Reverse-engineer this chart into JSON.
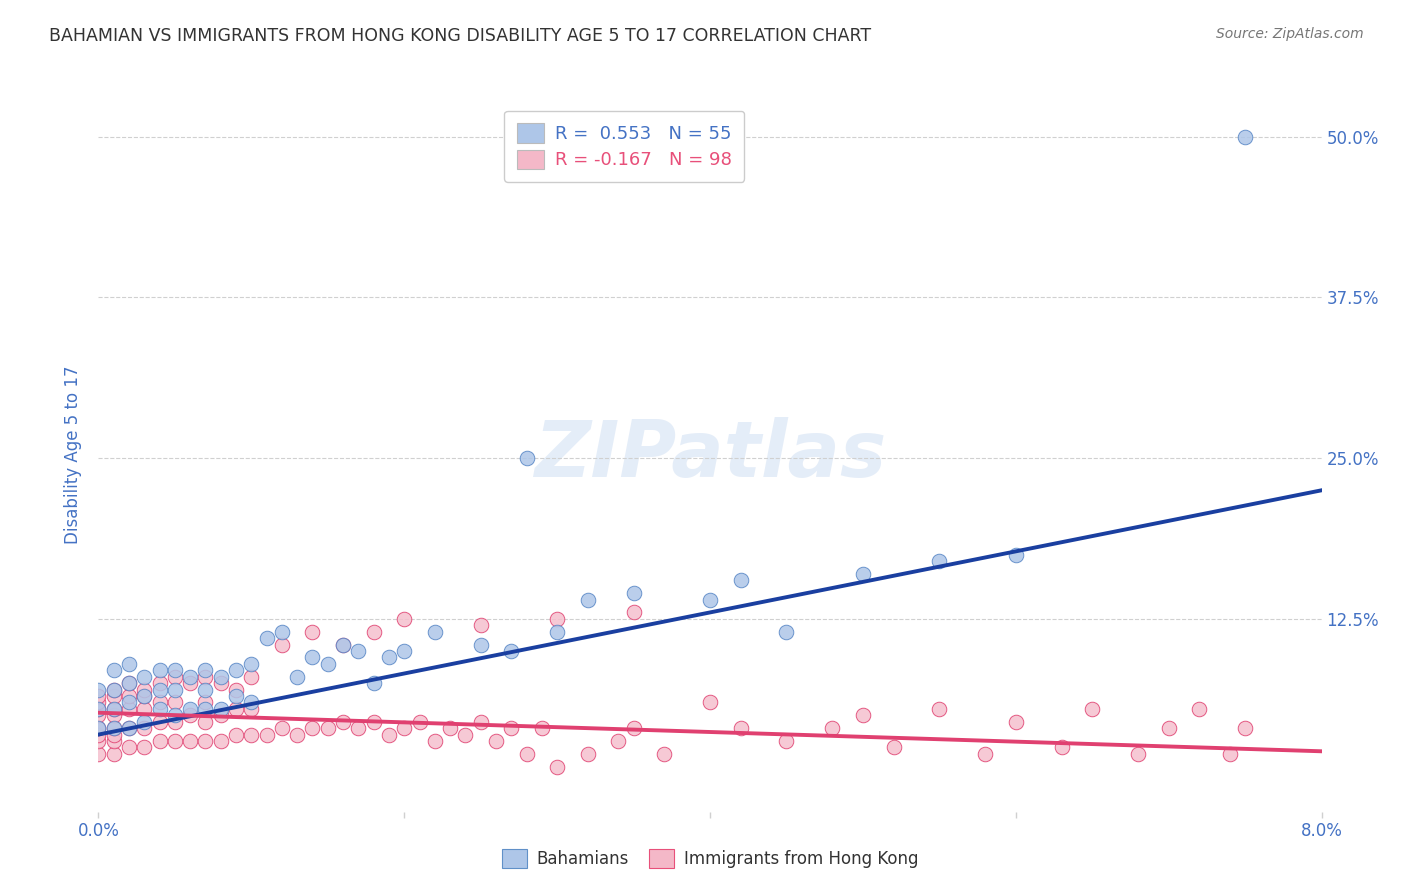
{
  "title": "BAHAMIAN VS IMMIGRANTS FROM HONG KONG DISABILITY AGE 5 TO 17 CORRELATION CHART",
  "source": "Source: ZipAtlas.com",
  "ylabel": "Disability Age 5 to 17",
  "ytick_labels": [
    "",
    "12.5%",
    "25.0%",
    "37.5%",
    "50.0%"
  ],
  "ytick_values": [
    0,
    0.125,
    0.25,
    0.375,
    0.5
  ],
  "xlim": [
    0.0,
    0.08
  ],
  "ylim": [
    -0.025,
    0.53
  ],
  "watermark_text": "ZIPatlas",
  "legend_entries": [
    {
      "label": "R =  0.553   N = 55",
      "face_color": "#aec6e8",
      "text_color": "#4472c4"
    },
    {
      "label": "R = -0.167   N = 98",
      "face_color": "#f4b8c8",
      "text_color": "#e8507a"
    }
  ],
  "bottom_legend": [
    {
      "label": "Bahamians",
      "color": "#aec6e8",
      "edge": "#6090c8"
    },
    {
      "label": "Immigrants from Hong Kong",
      "color": "#f4b8c8",
      "edge": "#e8507a"
    }
  ],
  "blue_scatter_x": [
    0.0,
    0.0,
    0.0,
    0.001,
    0.001,
    0.001,
    0.001,
    0.002,
    0.002,
    0.002,
    0.002,
    0.003,
    0.003,
    0.003,
    0.004,
    0.004,
    0.004,
    0.005,
    0.005,
    0.005,
    0.006,
    0.006,
    0.007,
    0.007,
    0.007,
    0.008,
    0.008,
    0.009,
    0.009,
    0.01,
    0.01,
    0.011,
    0.012,
    0.013,
    0.014,
    0.015,
    0.016,
    0.017,
    0.018,
    0.019,
    0.02,
    0.022,
    0.025,
    0.027,
    0.028,
    0.03,
    0.032,
    0.035,
    0.04,
    0.042,
    0.045,
    0.05,
    0.055,
    0.06,
    0.075
  ],
  "blue_scatter_y": [
    0.04,
    0.055,
    0.07,
    0.04,
    0.055,
    0.07,
    0.085,
    0.04,
    0.06,
    0.075,
    0.09,
    0.045,
    0.065,
    0.08,
    0.055,
    0.07,
    0.085,
    0.05,
    0.07,
    0.085,
    0.055,
    0.08,
    0.055,
    0.07,
    0.085,
    0.055,
    0.08,
    0.065,
    0.085,
    0.06,
    0.09,
    0.11,
    0.115,
    0.08,
    0.095,
    0.09,
    0.105,
    0.1,
    0.075,
    0.095,
    0.1,
    0.115,
    0.105,
    0.1,
    0.25,
    0.115,
    0.14,
    0.145,
    0.14,
    0.155,
    0.115,
    0.16,
    0.17,
    0.175,
    0.5
  ],
  "pink_scatter_x": [
    0.0,
    0.0,
    0.0,
    0.0,
    0.0,
    0.0,
    0.0,
    0.0,
    0.001,
    0.001,
    0.001,
    0.001,
    0.001,
    0.001,
    0.001,
    0.002,
    0.002,
    0.002,
    0.002,
    0.003,
    0.003,
    0.003,
    0.003,
    0.004,
    0.004,
    0.004,
    0.005,
    0.005,
    0.005,
    0.006,
    0.006,
    0.007,
    0.007,
    0.007,
    0.008,
    0.008,
    0.009,
    0.009,
    0.01,
    0.01,
    0.011,
    0.012,
    0.013,
    0.014,
    0.015,
    0.016,
    0.017,
    0.018,
    0.019,
    0.02,
    0.021,
    0.022,
    0.023,
    0.024,
    0.025,
    0.026,
    0.027,
    0.028,
    0.029,
    0.03,
    0.032,
    0.034,
    0.035,
    0.037,
    0.04,
    0.042,
    0.045,
    0.048,
    0.05,
    0.052,
    0.055,
    0.058,
    0.06,
    0.063,
    0.065,
    0.068,
    0.07,
    0.072,
    0.074,
    0.075,
    0.001,
    0.002,
    0.003,
    0.004,
    0.005,
    0.006,
    0.007,
    0.008,
    0.009,
    0.01,
    0.012,
    0.014,
    0.016,
    0.018,
    0.02,
    0.025,
    0.03,
    0.035
  ],
  "pink_scatter_y": [
    0.02,
    0.03,
    0.035,
    0.04,
    0.05,
    0.055,
    0.06,
    0.065,
    0.02,
    0.03,
    0.035,
    0.04,
    0.05,
    0.055,
    0.065,
    0.025,
    0.04,
    0.055,
    0.065,
    0.025,
    0.04,
    0.055,
    0.065,
    0.03,
    0.045,
    0.06,
    0.03,
    0.045,
    0.06,
    0.03,
    0.05,
    0.03,
    0.045,
    0.06,
    0.03,
    0.05,
    0.035,
    0.055,
    0.035,
    0.055,
    0.035,
    0.04,
    0.035,
    0.04,
    0.04,
    0.045,
    0.04,
    0.045,
    0.035,
    0.04,
    0.045,
    0.03,
    0.04,
    0.035,
    0.045,
    0.03,
    0.04,
    0.02,
    0.04,
    0.01,
    0.02,
    0.03,
    0.04,
    0.02,
    0.06,
    0.04,
    0.03,
    0.04,
    0.05,
    0.025,
    0.055,
    0.02,
    0.045,
    0.025,
    0.055,
    0.02,
    0.04,
    0.055,
    0.02,
    0.04,
    0.07,
    0.075,
    0.07,
    0.075,
    0.08,
    0.075,
    0.08,
    0.075,
    0.07,
    0.08,
    0.105,
    0.115,
    0.105,
    0.115,
    0.125,
    0.12,
    0.125,
    0.13
  ],
  "blue_line_x": [
    0.0,
    0.08
  ],
  "blue_line_y": [
    0.035,
    0.225
  ],
  "pink_line_x": [
    0.0,
    0.08
  ],
  "pink_line_y": [
    0.052,
    0.022
  ],
  "blue_line_color": "#1a3fa0",
  "pink_line_color": "#e04070",
  "blue_scatter_color": "#aec6e8",
  "blue_scatter_edge": "#5585c5",
  "pink_scatter_color": "#f5c0ce",
  "pink_scatter_edge": "#e04070",
  "title_color": "#333333",
  "title_fontsize": 12.5,
  "source_color": "#777777",
  "source_fontsize": 10,
  "axis_color": "#4472c4",
  "grid_color": "#d0d0d0",
  "bg_color": "#ffffff"
}
